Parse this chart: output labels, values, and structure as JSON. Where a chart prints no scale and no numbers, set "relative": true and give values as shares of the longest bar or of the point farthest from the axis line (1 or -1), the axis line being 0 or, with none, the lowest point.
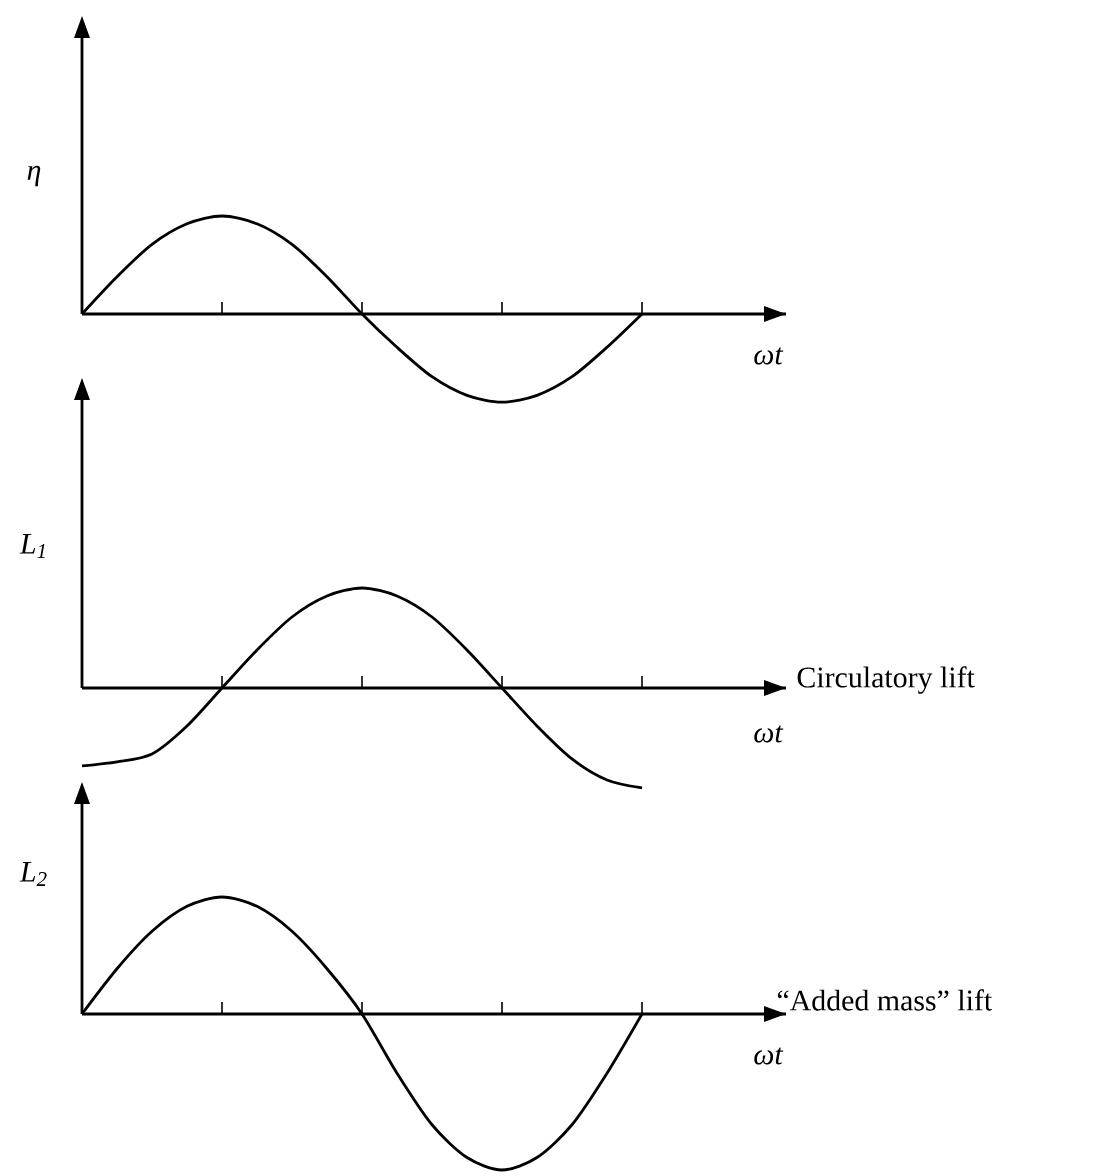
{
  "chart_data": [
    {
      "type": "line",
      "relative": true,
      "ylabel": "η",
      "xlabel": "ωt",
      "color": "#000000",
      "categories": [
        null,
        null,
        null,
        null,
        null,
        null,
        null,
        null,
        null,
        null,
        null,
        null,
        null,
        null,
        null,
        null,
        null
      ],
      "values": [
        0,
        0.38,
        0.71,
        0.92,
        1,
        0.92,
        0.71,
        0.38,
        0,
        -0.34,
        -0.64,
        -0.83,
        -0.9,
        -0.83,
        -0.64,
        -0.34,
        0
      ]
    },
    {
      "type": "line",
      "relative": true,
      "ylabel": "L$_{1}$",
      "xlabel": "ωt",
      "color": "#000000",
      "annotations": [
        "Circulatory lift"
      ],
      "categories": [
        null,
        null,
        null,
        null,
        null,
        null,
        null,
        null,
        null,
        null,
        null,
        null,
        null,
        null,
        null,
        null,
        null
      ],
      "values": [
        -0.78,
        -0.74,
        -0.66,
        -0.38,
        0,
        0.38,
        0.71,
        0.92,
        1,
        0.92,
        0.71,
        0.38,
        0,
        -0.38,
        -0.71,
        -0.92,
        -1
      ]
    },
    {
      "type": "line",
      "relative": true,
      "ylabel": "L$_{2}$",
      "xlabel": "ωt",
      "color": "#000000",
      "annotations": [
        "“Added mass” lift"
      ],
      "categories": [
        null,
        null,
        null,
        null,
        null,
        null,
        null,
        null,
        null,
        null,
        null,
        null,
        null,
        null,
        null,
        null,
        null
      ],
      "values": [
        0,
        0.29,
        0.53,
        0.69,
        0.75,
        0.69,
        0.53,
        0.29,
        0,
        -0.38,
        -0.71,
        -0.92,
        -1,
        -0.92,
        -0.71,
        -0.38,
        0
      ]
    }
  ]
}
